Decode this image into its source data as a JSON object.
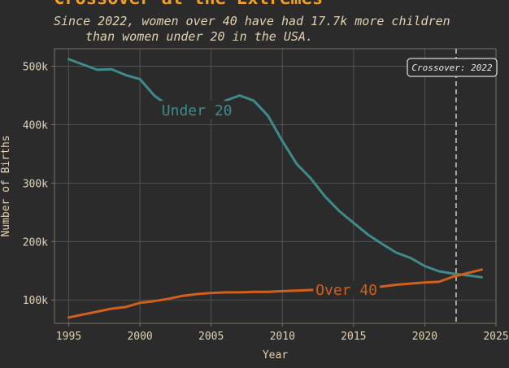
{
  "chart_data": {
    "type": "line",
    "title": "Crossover at the Extremes",
    "subtitle_lines": [
      "Since 2022, women over 40 have had 17.7k more children",
      "than women under 20 in the USA."
    ],
    "xlabel": "Year",
    "ylabel": "Number of Births",
    "xlim": [
      1994,
      2025
    ],
    "ylim": [
      60000,
      530000
    ],
    "x_ticks": [
      1995,
      2000,
      2005,
      2010,
      2015,
      2020,
      2025
    ],
    "y_ticks": [
      {
        "value": 100000,
        "label": "100k"
      },
      {
        "value": 200000,
        "label": "200k"
      },
      {
        "value": 300000,
        "label": "300k"
      },
      {
        "value": 400000,
        "label": "400k"
      },
      {
        "value": 500000,
        "label": "500k"
      }
    ],
    "grid": true,
    "series": [
      {
        "name": "Under 20",
        "color": "#3f8a8a",
        "x": [
          1995,
          1996,
          1997,
          1998,
          1999,
          2000,
          2001,
          2002,
          2003,
          2004,
          2005,
          2006,
          2007,
          2008,
          2009,
          2010,
          2011,
          2012,
          2013,
          2014,
          2015,
          2016,
          2017,
          2018,
          2019,
          2020,
          2021,
          2022,
          2023,
          2024
        ],
        "values": [
          512000,
          503000,
          494000,
          495000,
          485000,
          478000,
          450000,
          432000,
          421000,
          421000,
          422000,
          441000,
          450000,
          441000,
          415000,
          372000,
          333000,
          308000,
          277000,
          252000,
          232000,
          212000,
          196000,
          181000,
          172000,
          158000,
          149000,
          145000,
          142000,
          139000
        ]
      },
      {
        "name": "Over 40",
        "color": "#d2601a",
        "x": [
          1995,
          1996,
          1997,
          1998,
          1999,
          2000,
          2001,
          2002,
          2003,
          2004,
          2005,
          2006,
          2007,
          2008,
          2009,
          2010,
          2011,
          2012,
          2013,
          2014,
          2015,
          2016,
          2017,
          2018,
          2019,
          2020,
          2021,
          2022,
          2023,
          2024
        ],
        "values": [
          70000,
          75000,
          80000,
          85000,
          88000,
          95000,
          98000,
          102000,
          107000,
          110000,
          112000,
          113000,
          113000,
          114000,
          114000,
          115000,
          116000,
          117000,
          118000,
          119000,
          121000,
          122000,
          123000,
          126000,
          128000,
          130000,
          131000,
          140000,
          146000,
          152000
        ]
      }
    ],
    "annotations": [
      {
        "type": "vline",
        "x": 2022.2,
        "label": "Crossover: 2022",
        "color": "#c4c4c4"
      },
      {
        "type": "series_label",
        "series": "Under 20",
        "text": "Under 20",
        "x": 2004,
        "y": 424000
      },
      {
        "type": "series_label",
        "series": "Over 40",
        "text": "Over 40",
        "x": 2014.5,
        "y": 117000
      }
    ],
    "colors": {
      "background": "#2b2b2b",
      "title": "#f0a028",
      "text": "#e3d2b1",
      "grid": "#5b5b5b",
      "frame": "#7b7262"
    }
  }
}
